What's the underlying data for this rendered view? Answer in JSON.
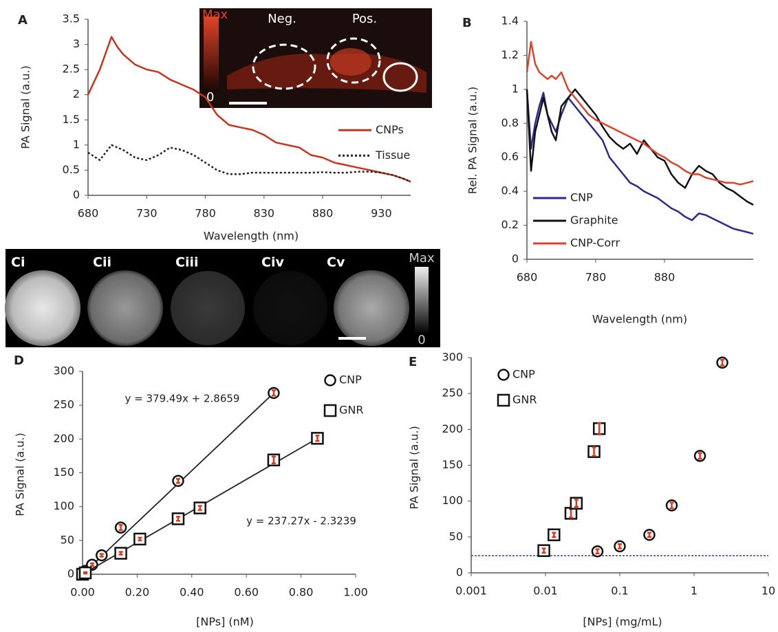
{
  "chart_data": [
    {
      "type": "line",
      "panel": "A",
      "xlabel": "Wavelength (nm)",
      "ylabel": "PA Signal (a.u.)",
      "x": [
        680,
        690,
        700,
        705,
        710,
        720,
        730,
        740,
        750,
        760,
        770,
        780,
        790,
        800,
        810,
        820,
        830,
        840,
        850,
        860,
        870,
        880,
        890,
        900,
        910,
        920,
        930,
        940,
        950,
        955
      ],
      "series": [
        {
          "name": "CNPs",
          "color": "#c9341c",
          "dash": false,
          "values": [
            2.0,
            2.5,
            3.15,
            2.95,
            2.8,
            2.6,
            2.5,
            2.45,
            2.3,
            2.2,
            2.1,
            1.95,
            1.6,
            1.4,
            1.35,
            1.3,
            1.2,
            1.05,
            1.0,
            0.95,
            0.8,
            0.75,
            0.65,
            0.6,
            0.55,
            0.5,
            0.45,
            0.4,
            0.32,
            0.27
          ]
        },
        {
          "name": "Tissue",
          "color": "#222222",
          "dash": true,
          "values": [
            0.85,
            0.7,
            1.0,
            0.95,
            0.9,
            0.75,
            0.7,
            0.8,
            0.95,
            0.9,
            0.8,
            0.65,
            0.5,
            0.42,
            0.42,
            0.45,
            0.45,
            0.45,
            0.45,
            0.45,
            0.45,
            0.46,
            0.45,
            0.45,
            0.47,
            0.47,
            0.45,
            0.4,
            0.32,
            0.27
          ]
        }
      ],
      "xlim": [
        680,
        955
      ],
      "xticks": [
        680,
        730,
        780,
        830,
        880,
        930
      ],
      "ylim": [
        0,
        3.5
      ],
      "yticks": [
        0,
        0.5,
        1,
        1.5,
        2,
        2.5,
        3,
        3.5
      ],
      "legend": "center right",
      "inset": {
        "max": "Max",
        "min": "0",
        "neg": "Neg.",
        "pos": "Pos."
      }
    },
    {
      "type": "line",
      "panel": "B",
      "xlabel": "Wavelength (nm)",
      "ylabel": "Rel. PA Signal (a.u.)",
      "x": [
        680,
        686,
        692,
        698,
        704,
        710,
        716,
        722,
        730,
        740,
        750,
        760,
        770,
        780,
        790,
        800,
        810,
        820,
        830,
        840,
        850,
        860,
        870,
        880,
        890,
        900,
        910,
        920,
        930,
        940,
        950,
        960,
        970,
        980,
        990,
        1000,
        1009
      ],
      "series": [
        {
          "name": "CNP",
          "color": "#2b2a8c",
          "dash": false,
          "values": [
            1.0,
            0.65,
            0.8,
            0.9,
            0.98,
            0.85,
            0.8,
            0.75,
            0.85,
            0.95,
            0.9,
            0.85,
            0.8,
            0.75,
            0.7,
            0.6,
            0.55,
            0.5,
            0.45,
            0.43,
            0.4,
            0.38,
            0.36,
            0.33,
            0.3,
            0.28,
            0.25,
            0.23,
            0.27,
            0.26,
            0.24,
            0.22,
            0.2,
            0.18,
            0.17,
            0.16,
            0.15
          ]
        },
        {
          "name": "Graphite",
          "color": "#111111",
          "dash": false,
          "values": [
            1.0,
            0.52,
            0.75,
            0.85,
            0.95,
            0.85,
            0.75,
            0.7,
            0.9,
            0.95,
            1.0,
            0.95,
            0.9,
            0.85,
            0.78,
            0.72,
            0.68,
            0.65,
            0.68,
            0.62,
            0.7,
            0.65,
            0.6,
            0.58,
            0.5,
            0.45,
            0.42,
            0.5,
            0.55,
            0.52,
            0.5,
            0.45,
            0.42,
            0.4,
            0.37,
            0.34,
            0.32
          ]
        },
        {
          "name": "CNP-Corr",
          "color": "#d9452a",
          "dash": false,
          "values": [
            1.1,
            1.28,
            1.15,
            1.1,
            1.08,
            1.06,
            1.08,
            1.06,
            1.1,
            1.0,
            0.95,
            0.9,
            0.85,
            0.82,
            0.8,
            0.78,
            0.76,
            0.74,
            0.72,
            0.7,
            0.68,
            0.65,
            0.62,
            0.6,
            0.57,
            0.55,
            0.52,
            0.5,
            0.5,
            0.48,
            0.47,
            0.46,
            0.45,
            0.45,
            0.44,
            0.45,
            0.46
          ]
        }
      ],
      "xlim": [
        680,
        1009
      ],
      "xticks": [
        680,
        780,
        880
      ],
      "ylim": [
        0,
        1.4
      ],
      "yticks": [
        0,
        0.2,
        0.4,
        0.6,
        0.8,
        1,
        1.2,
        1.4
      ],
      "legend": "lower left"
    },
    {
      "type": "scatter",
      "panel": "D",
      "xlabel": "[NPs] (nM)",
      "ylabel": "PA Signal (a.u.)",
      "fit_lines": true,
      "error_color": "#d93a1e",
      "series": [
        {
          "name": "CNP",
          "marker": "circle",
          "color": "#111111",
          "equation": "y = 379.49x + 2.8659",
          "x": [
            0,
            0.01,
            0.035,
            0.07,
            0.14,
            0.35,
            0.7
          ],
          "values": [
            0,
            5,
            14,
            28,
            69,
            138,
            268
          ],
          "errors": [
            1,
            1,
            2,
            2,
            4,
            3,
            4
          ]
        },
        {
          "name": "GNR",
          "marker": "square",
          "color": "#111111",
          "equation": "y = 237.27x - 2.3239",
          "x": [
            0,
            0.01,
            0.14,
            0.21,
            0.35,
            0.43,
            0.7,
            0.86
          ],
          "values": [
            0,
            2,
            31,
            52,
            82,
            98,
            169,
            201
          ],
          "errors": [
            1,
            1,
            2,
            2,
            3,
            3,
            5,
            4
          ]
        }
      ],
      "xlim": [
        0,
        1
      ],
      "xticks": [
        {
          "value": 0,
          "label": "0.00"
        },
        {
          "value": 0.2,
          "label": "0.20"
        },
        {
          "value": 0.4,
          "label": "0.40"
        },
        {
          "value": 0.6,
          "label": "0.60"
        },
        {
          "value": 0.8,
          "label": "0.80"
        },
        {
          "value": 1,
          "label": "1.00"
        }
      ],
      "ylim": [
        0,
        300
      ],
      "yticks": [
        0,
        50,
        100,
        150,
        200,
        250,
        300
      ],
      "legend": "upper right"
    },
    {
      "type": "scatter",
      "panel": "E",
      "xlabel": "[NPs] (mg/mL)",
      "ylabel": "PA Signal (a.u.)",
      "xscale": "log",
      "error_color": "#d93a1e",
      "hline": 24,
      "hline_color": "#3a3ab0",
      "series": [
        {
          "name": "CNP",
          "marker": "circle",
          "color": "#111111",
          "x": [
            0.05,
            0.1,
            0.25,
            0.5,
            1.2,
            2.4
          ],
          "values": [
            30,
            37,
            53,
            94,
            163,
            293
          ],
          "errors": [
            3,
            3,
            3,
            4,
            4,
            4
          ]
        },
        {
          "name": "GNR",
          "marker": "square",
          "color": "#111111",
          "x": [
            0.0095,
            0.013,
            0.022,
            0.026,
            0.045,
            0.053
          ],
          "values": [
            31,
            53,
            83,
            97,
            169,
            201
          ],
          "errors": [
            3,
            3,
            6,
            5,
            6,
            8
          ]
        }
      ],
      "xlim": [
        0.001,
        10
      ],
      "xticks": [
        0.001,
        0.01,
        0.1,
        1,
        10
      ],
      "ylim": [
        0,
        300
      ],
      "yticks": [
        0,
        50,
        100,
        150,
        200,
        250,
        300
      ],
      "legend": "upper left"
    }
  ],
  "images": {
    "labels": [
      "Ci",
      "Cii",
      "Ciii",
      "Civ",
      "Cv"
    ],
    "max": "Max",
    "min": "0"
  }
}
